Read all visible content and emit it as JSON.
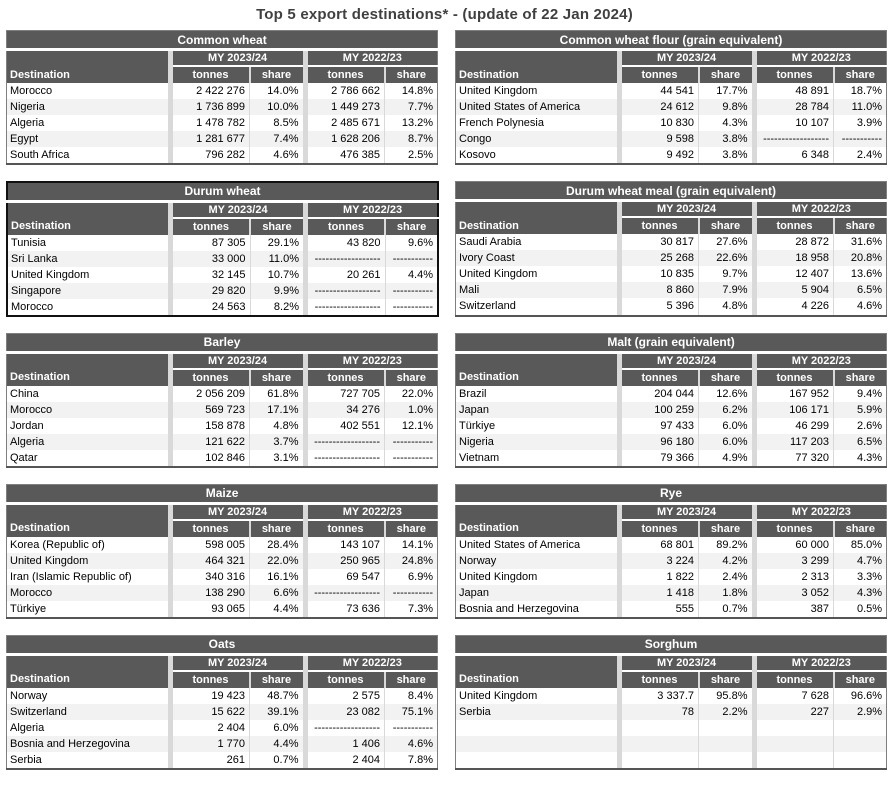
{
  "page_title": "Top 5 export destinations* - (update of 22 Jan 2024)",
  "column_headers": {
    "destination": "Destination",
    "tonnes": "tonnes",
    "share": "share"
  },
  "year_groups": [
    "MY 2023/24",
    "MY 2022/23"
  ],
  "colors": {
    "header_bg": "#595959",
    "header_text": "#ffffff",
    "row_alt_bg": "#f2f2f2",
    "gap_bg": "#d9d9d9",
    "table_border": "#7f7f7f",
    "highlight_border": "#111111",
    "title_text": "#404040"
  },
  "missing_tonnes": "------------------",
  "missing_share": "-----------",
  "chart_data": [
    {
      "type": "table",
      "title": "Common wheat",
      "highlighted": false,
      "columns": [
        "Destination",
        "MY 2023/24 tonnes",
        "MY 2023/24 share",
        "MY 2022/23 tonnes",
        "MY 2022/23 share"
      ],
      "rows": [
        [
          "Morocco",
          "2 422 276",
          "14.0%",
          "2 786 662",
          "14.8%"
        ],
        [
          "Nigeria",
          "1 736 899",
          "10.0%",
          "1 449 273",
          "7.7%"
        ],
        [
          "Algeria",
          "1 478 782",
          "8.5%",
          "2 485 671",
          "13.2%"
        ],
        [
          "Egypt",
          "1 281 677",
          "7.4%",
          "1 628 206",
          "8.7%"
        ],
        [
          "South Africa",
          "796 282",
          "4.6%",
          "476 385",
          "2.5%"
        ]
      ]
    },
    {
      "type": "table",
      "title": "Common wheat flour (grain equivalent)",
      "highlighted": false,
      "columns": [
        "Destination",
        "MY 2023/24 tonnes",
        "MY 2023/24 share",
        "MY 2022/23 tonnes",
        "MY 2022/23 share"
      ],
      "rows": [
        [
          "United Kingdom",
          "44 541",
          "17.7%",
          "48 891",
          "18.7%"
        ],
        [
          "United States of America",
          "24 612",
          "9.8%",
          "28 784",
          "11.0%"
        ],
        [
          "French Polynesia",
          "10 830",
          "4.3%",
          "10 107",
          "3.9%"
        ],
        [
          "Congo",
          "9 598",
          "3.8%",
          "------------------",
          "-----------"
        ],
        [
          "Kosovo",
          "9 492",
          "3.8%",
          "6 348",
          "2.4%"
        ]
      ]
    },
    {
      "type": "table",
      "title": "Durum wheat",
      "highlighted": true,
      "columns": [
        "Destination",
        "MY 2023/24 tonnes",
        "MY 2023/24 share",
        "MY 2022/23 tonnes",
        "MY 2022/23 share"
      ],
      "rows": [
        [
          "Tunisia",
          "87 305",
          "29.1%",
          "43 820",
          "9.6%"
        ],
        [
          "Sri Lanka",
          "33 000",
          "11.0%",
          "------------------",
          "-----------"
        ],
        [
          "United Kingdom",
          "32 145",
          "10.7%",
          "20 261",
          "4.4%"
        ],
        [
          "Singapore",
          "29 820",
          "9.9%",
          "------------------",
          "-----------"
        ],
        [
          "Morocco",
          "24 563",
          "8.2%",
          "------------------",
          "-----------"
        ]
      ]
    },
    {
      "type": "table",
      "title": "Durum wheat meal (grain equivalent)",
      "highlighted": false,
      "columns": [
        "Destination",
        "MY 2023/24 tonnes",
        "MY 2023/24 share",
        "MY 2022/23 tonnes",
        "MY 2022/23 share"
      ],
      "rows": [
        [
          "Saudi Arabia",
          "30 817",
          "27.6%",
          "28 872",
          "31.6%"
        ],
        [
          "Ivory Coast",
          "25 268",
          "22.6%",
          "18 958",
          "20.8%"
        ],
        [
          "United Kingdom",
          "10 835",
          "9.7%",
          "12 407",
          "13.6%"
        ],
        [
          "Mali",
          "8 860",
          "7.9%",
          "5 904",
          "6.5%"
        ],
        [
          "Switzerland",
          "5 396",
          "4.8%",
          "4 226",
          "4.6%"
        ]
      ]
    },
    {
      "type": "table",
      "title": "Barley",
      "highlighted": false,
      "columns": [
        "Destination",
        "MY 2023/24 tonnes",
        "MY 2023/24 share",
        "MY 2022/23 tonnes",
        "MY 2022/23 share"
      ],
      "rows": [
        [
          "China",
          "2 056 209",
          "61.8%",
          "727 705",
          "22.0%"
        ],
        [
          "Morocco",
          "569 723",
          "17.1%",
          "34 276",
          "1.0%"
        ],
        [
          "Jordan",
          "158 878",
          "4.8%",
          "402 551",
          "12.1%"
        ],
        [
          "Algeria",
          "121 622",
          "3.7%",
          "------------------",
          "-----------"
        ],
        [
          "Qatar",
          "102 846",
          "3.1%",
          "------------------",
          "-----------"
        ]
      ]
    },
    {
      "type": "table",
      "title": "Malt (grain equivalent)",
      "highlighted": false,
      "columns": [
        "Destination",
        "MY 2023/24 tonnes",
        "MY 2023/24 share",
        "MY 2022/23 tonnes",
        "MY 2022/23 share"
      ],
      "rows": [
        [
          "Brazil",
          "204 044",
          "12.6%",
          "167 952",
          "9.4%"
        ],
        [
          "Japan",
          "100 259",
          "6.2%",
          "106 171",
          "5.9%"
        ],
        [
          "Türkiye",
          "97 433",
          "6.0%",
          "46 299",
          "2.6%"
        ],
        [
          "Nigeria",
          "96 180",
          "6.0%",
          "117 203",
          "6.5%"
        ],
        [
          "Vietnam",
          "79 366",
          "4.9%",
          "77 320",
          "4.3%"
        ]
      ]
    },
    {
      "type": "table",
      "title": "Maize",
      "highlighted": false,
      "columns": [
        "Destination",
        "MY 2023/24 tonnes",
        "MY 2023/24 share",
        "MY 2022/23 tonnes",
        "MY 2022/23 share"
      ],
      "rows": [
        [
          "Korea (Republic of)",
          "598 005",
          "28.4%",
          "143 107",
          "14.1%"
        ],
        [
          "United Kingdom",
          "464 321",
          "22.0%",
          "250 965",
          "24.8%"
        ],
        [
          "Iran (Islamic Republic of)",
          "340 316",
          "16.1%",
          "69 547",
          "6.9%"
        ],
        [
          "Morocco",
          "138 290",
          "6.6%",
          "------------------",
          "-----------"
        ],
        [
          "Türkiye",
          "93 065",
          "4.4%",
          "73 636",
          "7.3%"
        ]
      ]
    },
    {
      "type": "table",
      "title": "Rye",
      "highlighted": false,
      "columns": [
        "Destination",
        "MY 2023/24 tonnes",
        "MY 2023/24 share",
        "MY 2022/23 tonnes",
        "MY 2022/23 share"
      ],
      "rows": [
        [
          "United States of America",
          "68 801",
          "89.2%",
          "60 000",
          "85.0%"
        ],
        [
          "Norway",
          "3 224",
          "4.2%",
          "3 299",
          "4.7%"
        ],
        [
          "United Kingdom",
          "1 822",
          "2.4%",
          "2 313",
          "3.3%"
        ],
        [
          "Japan",
          "1 418",
          "1.8%",
          "3 052",
          "4.3%"
        ],
        [
          "Bosnia and Herzegovina",
          "555",
          "0.7%",
          "387",
          "0.5%"
        ]
      ]
    },
    {
      "type": "table",
      "title": "Oats",
      "highlighted": false,
      "columns": [
        "Destination",
        "MY 2023/24 tonnes",
        "MY 2023/24 share",
        "MY 2022/23 tonnes",
        "MY 2022/23 share"
      ],
      "rows": [
        [
          "Norway",
          "19 423",
          "48.7%",
          "2 575",
          "8.4%"
        ],
        [
          "Switzerland",
          "15 622",
          "39.1%",
          "23 082",
          "75.1%"
        ],
        [
          "Algeria",
          "2 404",
          "6.0%",
          "------------------",
          "-----------"
        ],
        [
          "Bosnia and Herzegovina",
          "1 770",
          "4.4%",
          "1 406",
          "4.6%"
        ],
        [
          "Serbia",
          "261",
          "0.7%",
          "2 404",
          "7.8%"
        ]
      ]
    },
    {
      "type": "table",
      "title": "Sorghum",
      "highlighted": false,
      "columns": [
        "Destination",
        "MY 2023/24 tonnes",
        "MY 2023/24 share",
        "MY 2022/23 tonnes",
        "MY 2022/23 share"
      ],
      "rows": [
        [
          "United Kingdom",
          "3 337.7",
          "95.8%",
          "7 628",
          "96.6%"
        ],
        [
          "Serbia",
          "78",
          "2.2%",
          "227",
          "2.9%"
        ],
        [
          "",
          "",
          "",
          "",
          ""
        ],
        [
          "",
          "",
          "",
          "",
          ""
        ],
        [
          "",
          "",
          "",
          "",
          ""
        ]
      ]
    }
  ]
}
